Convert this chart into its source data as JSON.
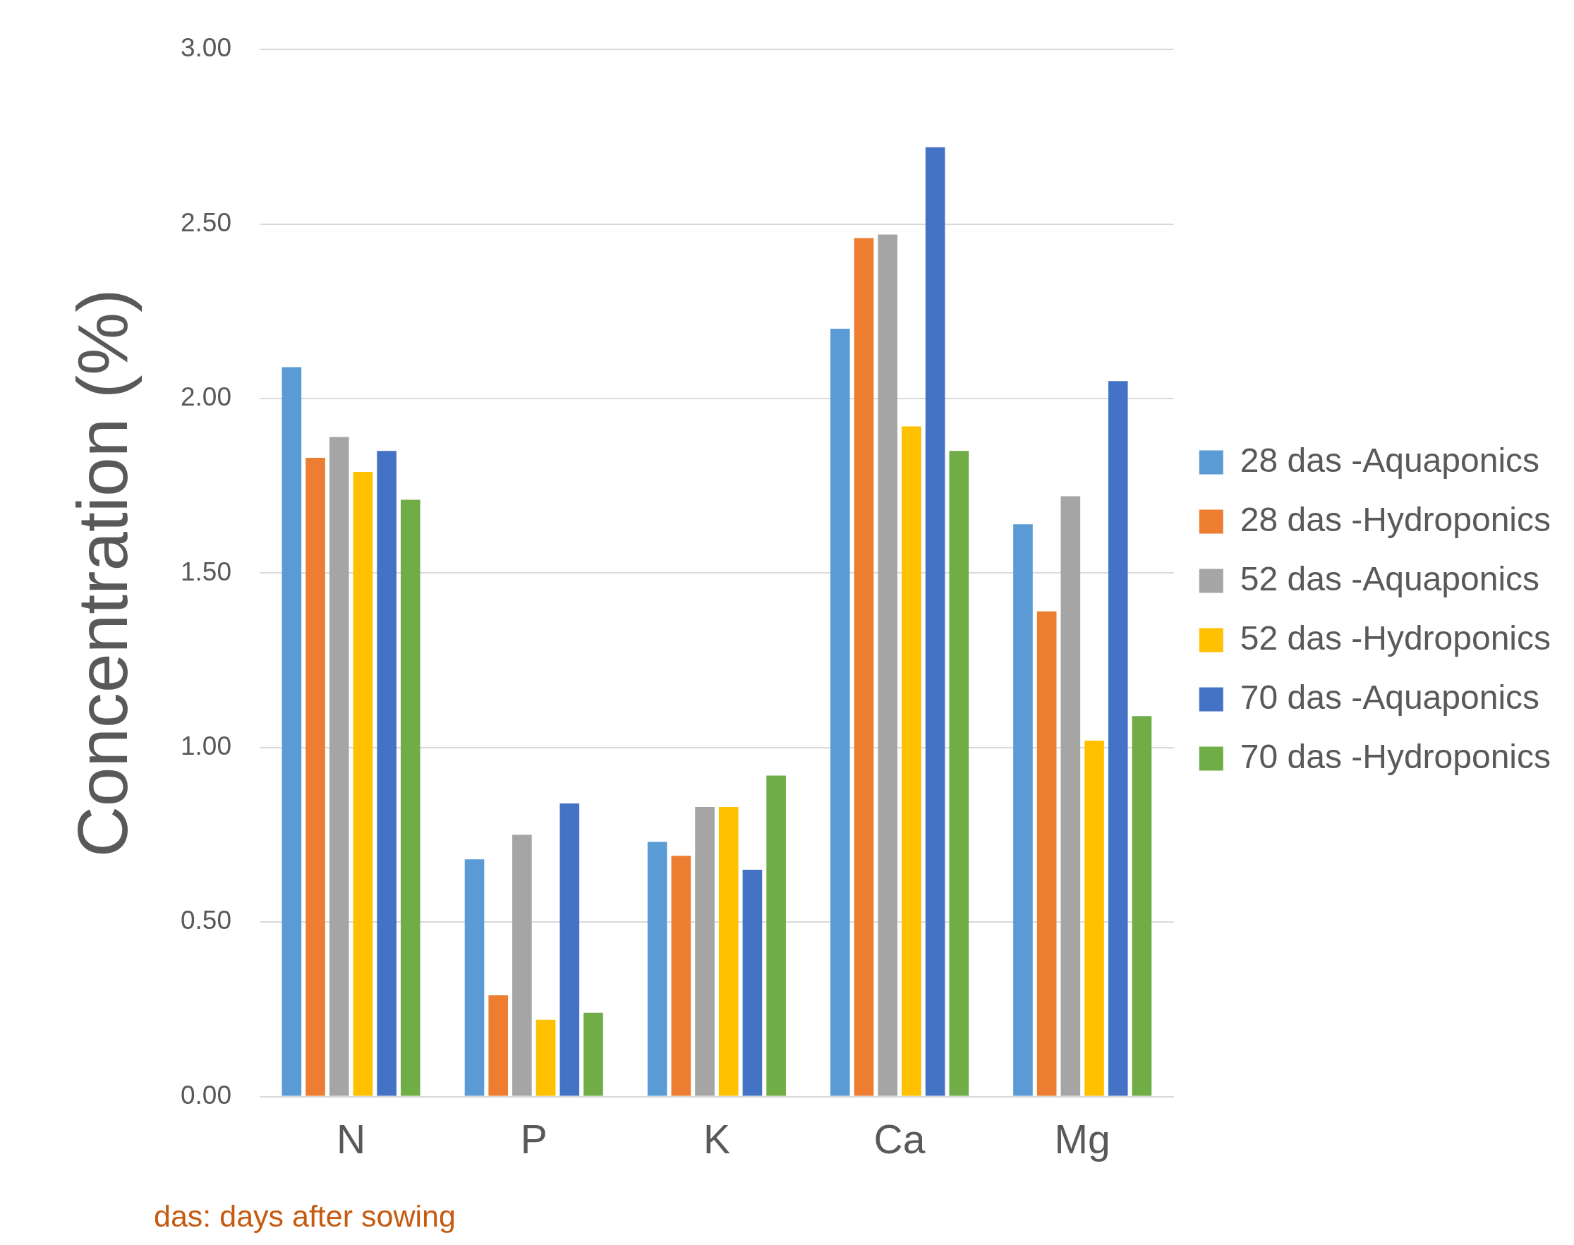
{
  "chart_data": {
    "type": "bar",
    "ylabel": "Concentration (%)",
    "categories": [
      "N",
      "P",
      "K",
      "Ca",
      "Mg"
    ],
    "series": [
      {
        "name": "28 das -Aquaponics",
        "color": "#5b9bd5",
        "values": [
          2.09,
          0.68,
          0.73,
          2.2,
          1.64
        ]
      },
      {
        "name": "28 das -Hydroponics",
        "color": "#ed7d31",
        "values": [
          1.83,
          0.29,
          0.69,
          2.46,
          1.39
        ]
      },
      {
        "name": "52 das -Aquaponics",
        "color": "#a5a5a5",
        "values": [
          1.89,
          0.75,
          0.83,
          2.47,
          1.72
        ]
      },
      {
        "name": "52 das -Hydroponics",
        "color": "#ffc000",
        "values": [
          1.79,
          0.22,
          0.83,
          1.92,
          1.02
        ]
      },
      {
        "name": "70 das -Aquaponics",
        "color": "#4472c4",
        "values": [
          1.85,
          0.84,
          0.65,
          2.72,
          2.05
        ]
      },
      {
        "name": "70 das -Hydroponics",
        "color": "#70ad47",
        "values": [
          1.71,
          0.24,
          0.92,
          1.85,
          1.09
        ]
      }
    ],
    "ylim": [
      0,
      3
    ],
    "yticks": [
      {
        "value": 0,
        "label": "0.00"
      },
      {
        "value": 0.5,
        "label": "0.50"
      },
      {
        "value": 1,
        "label": "1.00"
      },
      {
        "value": 1.5,
        "label": "1.50"
      },
      {
        "value": 2,
        "label": "2.00"
      },
      {
        "value": 2.5,
        "label": "2.50"
      },
      {
        "value": 3,
        "label": "3.00"
      }
    ],
    "grid": "y",
    "legend": "right",
    "annotations": [
      "das: days after sowing"
    ]
  }
}
